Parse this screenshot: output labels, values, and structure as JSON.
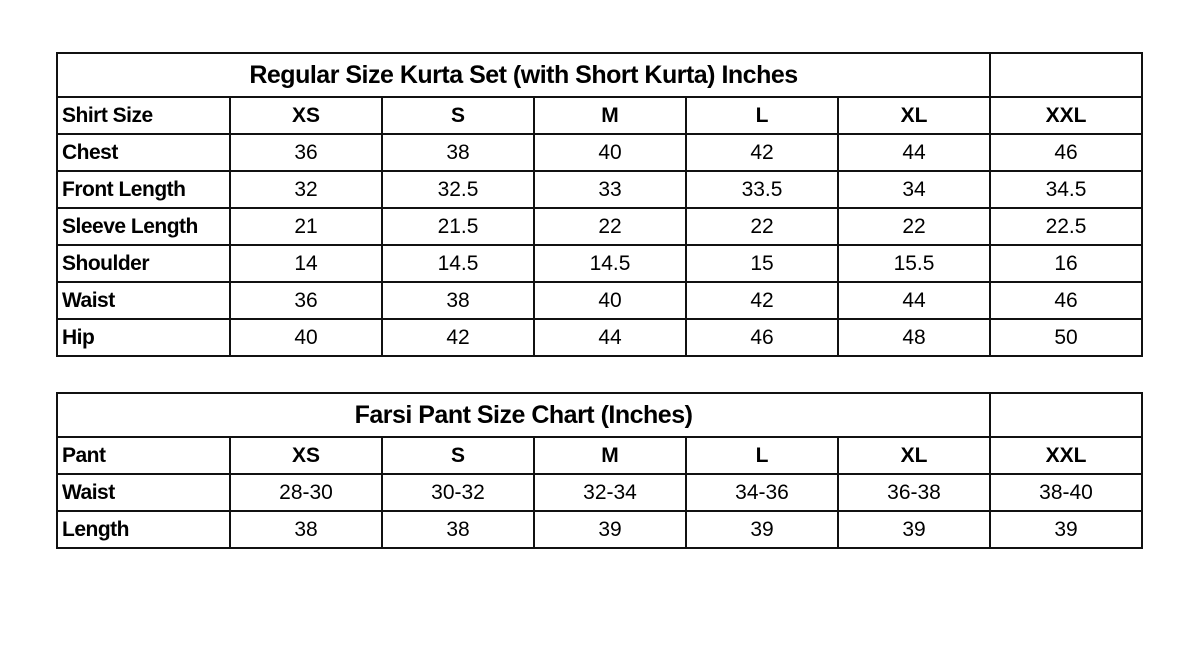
{
  "kurta_table": {
    "title": "Regular Size Kurta Set (with Short Kurta) Inches",
    "header": {
      "label": "Shirt Size",
      "sizes": [
        "XS",
        "S",
        "M",
        "L",
        "XL",
        "XXL"
      ]
    },
    "rows": [
      {
        "label": "Chest",
        "values": [
          "36",
          "38",
          "40",
          "42",
          "44",
          "46"
        ]
      },
      {
        "label": "Front Length",
        "values": [
          "32",
          "32.5",
          "33",
          "33.5",
          "34",
          "34.5"
        ]
      },
      {
        "label": "Sleeve Length",
        "values": [
          "21",
          "21.5",
          "22",
          "22",
          "22",
          "22.5"
        ]
      },
      {
        "label": "Shoulder",
        "values": [
          "14",
          "14.5",
          "14.5",
          "15",
          "15.5",
          "16"
        ]
      },
      {
        "label": "Waist",
        "values": [
          "36",
          "38",
          "40",
          "42",
          "44",
          "46"
        ]
      },
      {
        "label": "Hip",
        "values": [
          "40",
          "42",
          "44",
          "46",
          "48",
          "50"
        ]
      }
    ]
  },
  "pant_table": {
    "title": "Farsi Pant Size Chart (Inches)",
    "header": {
      "label": "Pant",
      "sizes": [
        "XS",
        "S",
        "M",
        "L",
        "XL",
        "XXL"
      ]
    },
    "rows": [
      {
        "label": "Waist",
        "values": [
          "28-30",
          "30-32",
          "32-34",
          "34-36",
          "36-38",
          "38-40"
        ]
      },
      {
        "label": "Length",
        "values": [
          "38",
          "38",
          "39",
          "39",
          "39",
          "39"
        ]
      }
    ]
  }
}
